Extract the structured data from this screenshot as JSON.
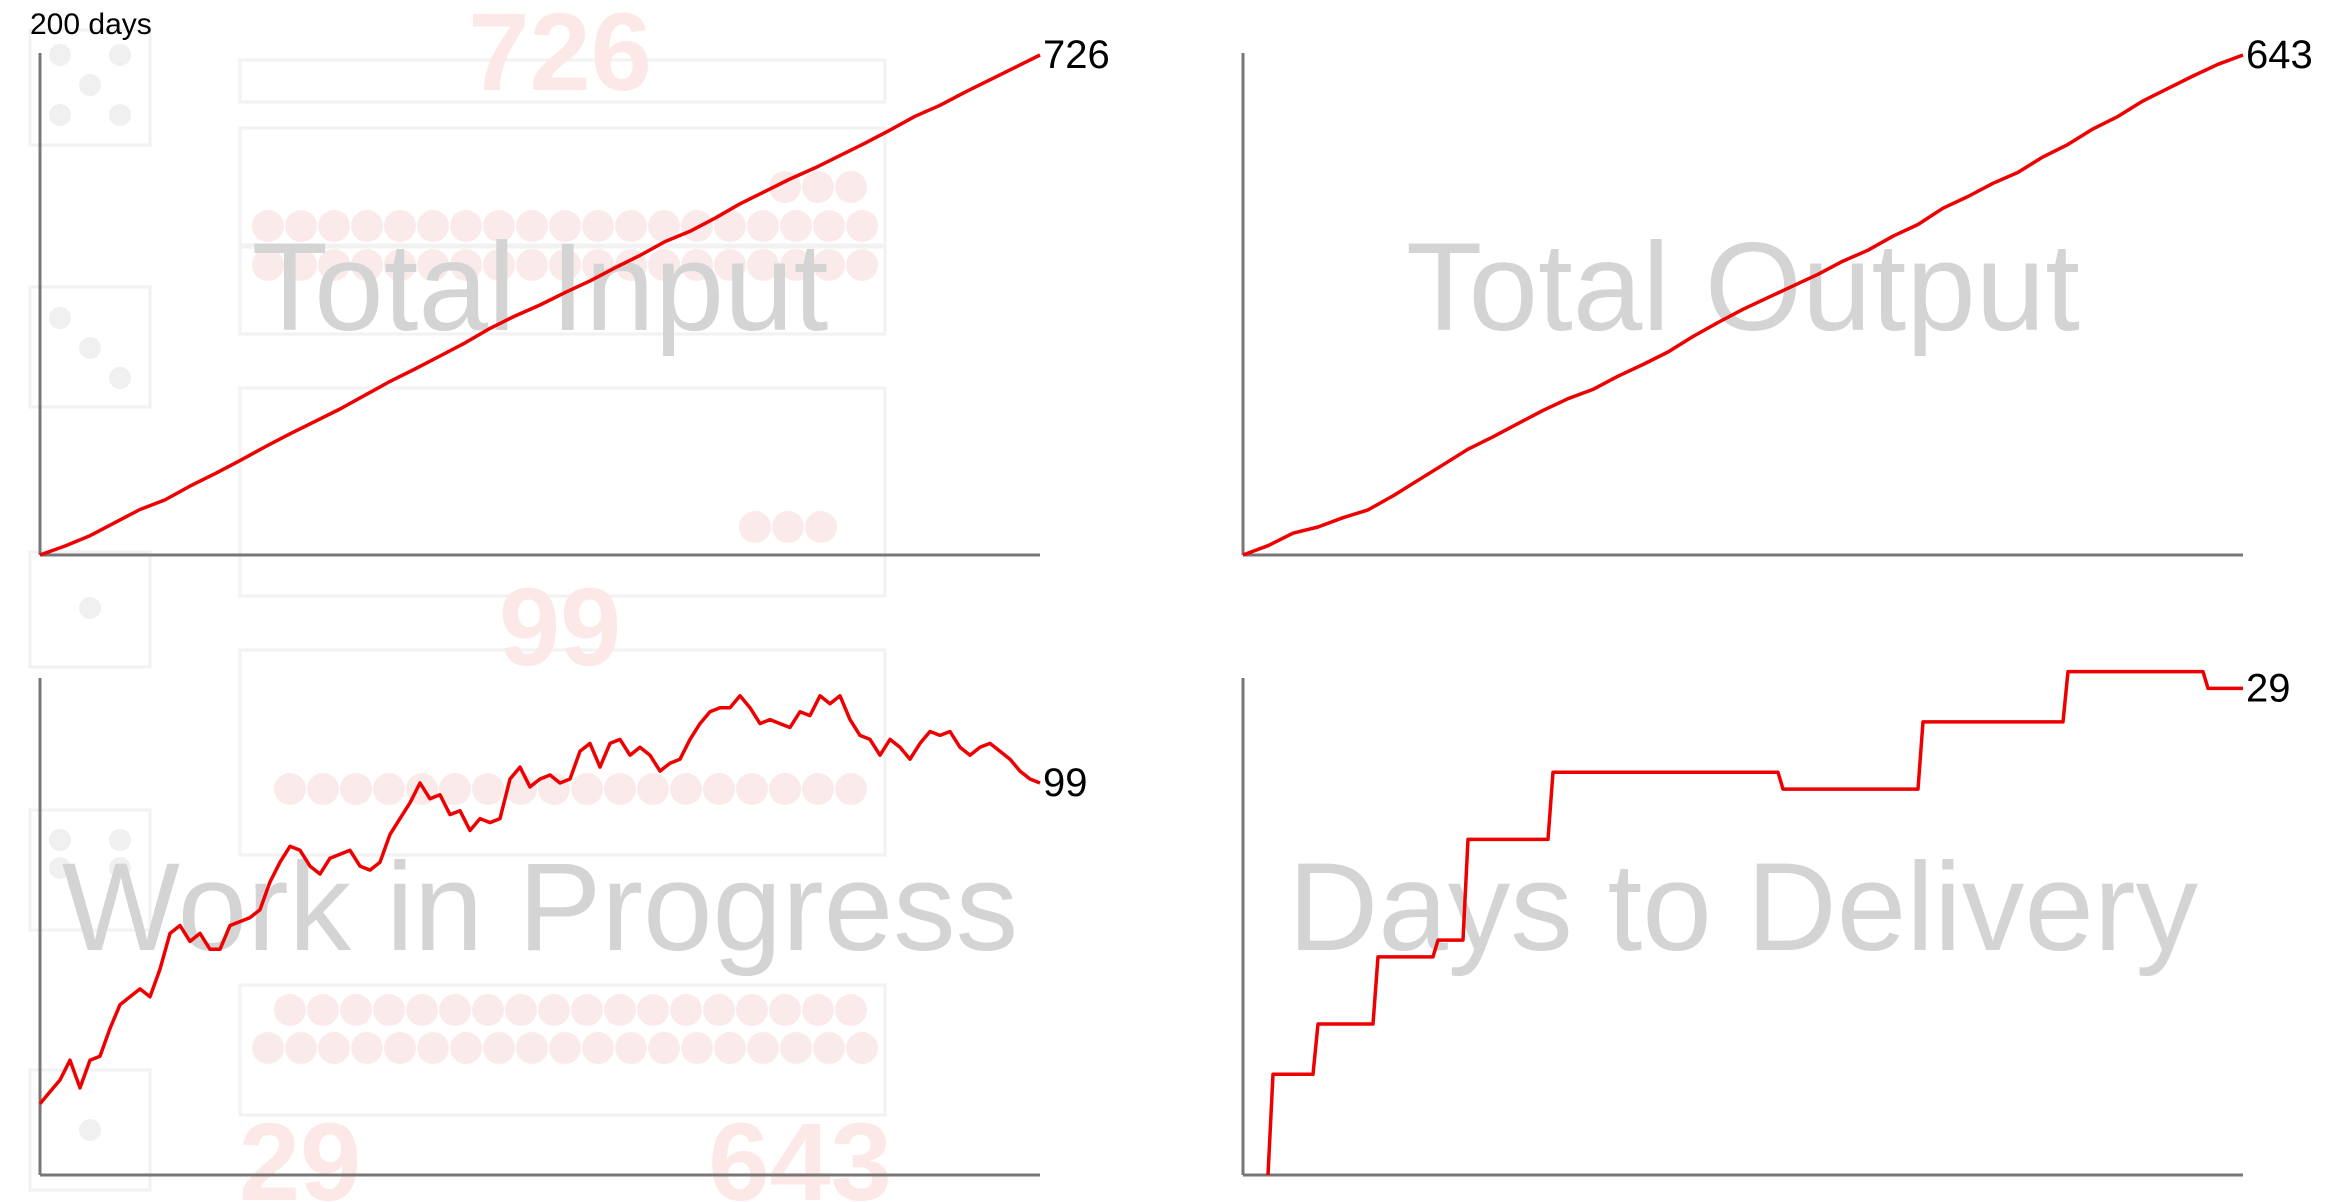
{
  "days_label": "200 days",
  "colors": {
    "line": "#ee0000",
    "axis": "#777777",
    "watermark_text": "#d4d4d4",
    "background_faint": "#f5f5f5",
    "background_dots": "#fbeaea",
    "background_numbers": "#fde8e8"
  },
  "background": {
    "numbers": [
      "726",
      "99",
      "29",
      "643"
    ]
  },
  "chart_data": [
    {
      "type": "line",
      "title": "Total Input",
      "end_label": "726",
      "xlim": [
        0,
        200
      ],
      "ylim": [
        0,
        726
      ],
      "x": [
        0,
        5,
        10,
        15,
        20,
        25,
        30,
        35,
        40,
        45,
        50,
        55,
        60,
        65,
        70,
        75,
        80,
        85,
        90,
        95,
        100,
        105,
        110,
        115,
        120,
        125,
        130,
        135,
        140,
        145,
        150,
        155,
        160,
        165,
        170,
        175,
        180,
        185,
        190,
        195,
        200
      ],
      "values": [
        0,
        13,
        28,
        47,
        66,
        80,
        100,
        118,
        137,
        157,
        176,
        194,
        212,
        232,
        252,
        270,
        289,
        308,
        329,
        347,
        363,
        381,
        398,
        417,
        435,
        455,
        470,
        489,
        510,
        528,
        546,
        562,
        580,
        598,
        617,
        637,
        653,
        672,
        690,
        708,
        726
      ]
    },
    {
      "type": "line",
      "title": "Total Output",
      "end_label": "643",
      "xlim": [
        0,
        200
      ],
      "ylim": [
        0,
        643
      ],
      "x": [
        0,
        5,
        10,
        15,
        20,
        25,
        30,
        35,
        40,
        45,
        50,
        55,
        60,
        65,
        70,
        75,
        80,
        85,
        90,
        95,
        100,
        105,
        110,
        115,
        120,
        125,
        130,
        135,
        140,
        145,
        150,
        155,
        160,
        165,
        170,
        175,
        180,
        185,
        190,
        195,
        200
      ],
      "values": [
        0,
        12,
        28,
        36,
        48,
        58,
        76,
        96,
        116,
        136,
        152,
        169,
        186,
        201,
        213,
        230,
        245,
        261,
        281,
        299,
        316,
        331,
        346,
        361,
        378,
        392,
        410,
        425,
        446,
        461,
        478,
        492,
        512,
        528,
        548,
        564,
        584,
        600,
        616,
        631,
        643
      ]
    },
    {
      "type": "line",
      "title": "Work in Progress",
      "end_label": "99",
      "xlim": [
        0,
        200
      ],
      "ylim": [
        0,
        125
      ],
      "x": [
        0,
        2,
        4,
        6,
        8,
        10,
        12,
        14,
        16,
        18,
        20,
        22,
        24,
        26,
        28,
        30,
        32,
        34,
        36,
        38,
        40,
        42,
        44,
        46,
        48,
        50,
        52,
        54,
        56,
        58,
        60,
        62,
        64,
        66,
        68,
        70,
        72,
        74,
        76,
        78,
        80,
        82,
        84,
        86,
        88,
        90,
        92,
        94,
        96,
        98,
        100,
        102,
        104,
        106,
        108,
        110,
        112,
        114,
        116,
        118,
        120,
        122,
        124,
        126,
        128,
        130,
        132,
        134,
        136,
        138,
        140,
        142,
        144,
        146,
        148,
        150,
        152,
        154,
        156,
        158,
        160,
        162,
        164,
        166,
        168,
        170,
        172,
        174,
        176,
        178,
        180,
        182,
        184,
        186,
        188,
        190,
        192,
        194,
        196,
        198,
        200
      ],
      "values": [
        18,
        21,
        24,
        29,
        22,
        29,
        30,
        37,
        43,
        45,
        47,
        45,
        52,
        61,
        63,
        59,
        61,
        57,
        57,
        63,
        64,
        65,
        67,
        74,
        79,
        83,
        82,
        78,
        76,
        80,
        81,
        82,
        78,
        77,
        79,
        86,
        90,
        94,
        99,
        95,
        96,
        91,
        92,
        87,
        90,
        89,
        90,
        100,
        103,
        98,
        100,
        101,
        99,
        100,
        107,
        109,
        103,
        109,
        110,
        106,
        108,
        106,
        102,
        104,
        105,
        110,
        114,
        117,
        118,
        118,
        121,
        118,
        114,
        115,
        114,
        113,
        117,
        116,
        121,
        119,
        121,
        115,
        111,
        110,
        106,
        110,
        108,
        105,
        109,
        112,
        111,
        112,
        108,
        106,
        108,
        109,
        107,
        105,
        102,
        100,
        99
      ]
    },
    {
      "type": "line",
      "title": "Days to Delivery",
      "end_label": "29",
      "xlim": [
        0,
        200
      ],
      "ylim": [
        0,
        29.5
      ],
      "x": [
        5,
        6,
        14,
        15,
        26,
        27,
        38,
        39,
        44,
        45,
        61,
        62,
        82,
        83,
        107,
        108,
        109,
        135,
        136,
        164,
        165,
        192,
        193,
        196,
        200
      ],
      "values": [
        0,
        6,
        6,
        9,
        9,
        13,
        13,
        14,
        14,
        20,
        20,
        24,
        24,
        24,
        24,
        23,
        23,
        23,
        27,
        27,
        30,
        30,
        29,
        29,
        29
      ]
    }
  ]
}
